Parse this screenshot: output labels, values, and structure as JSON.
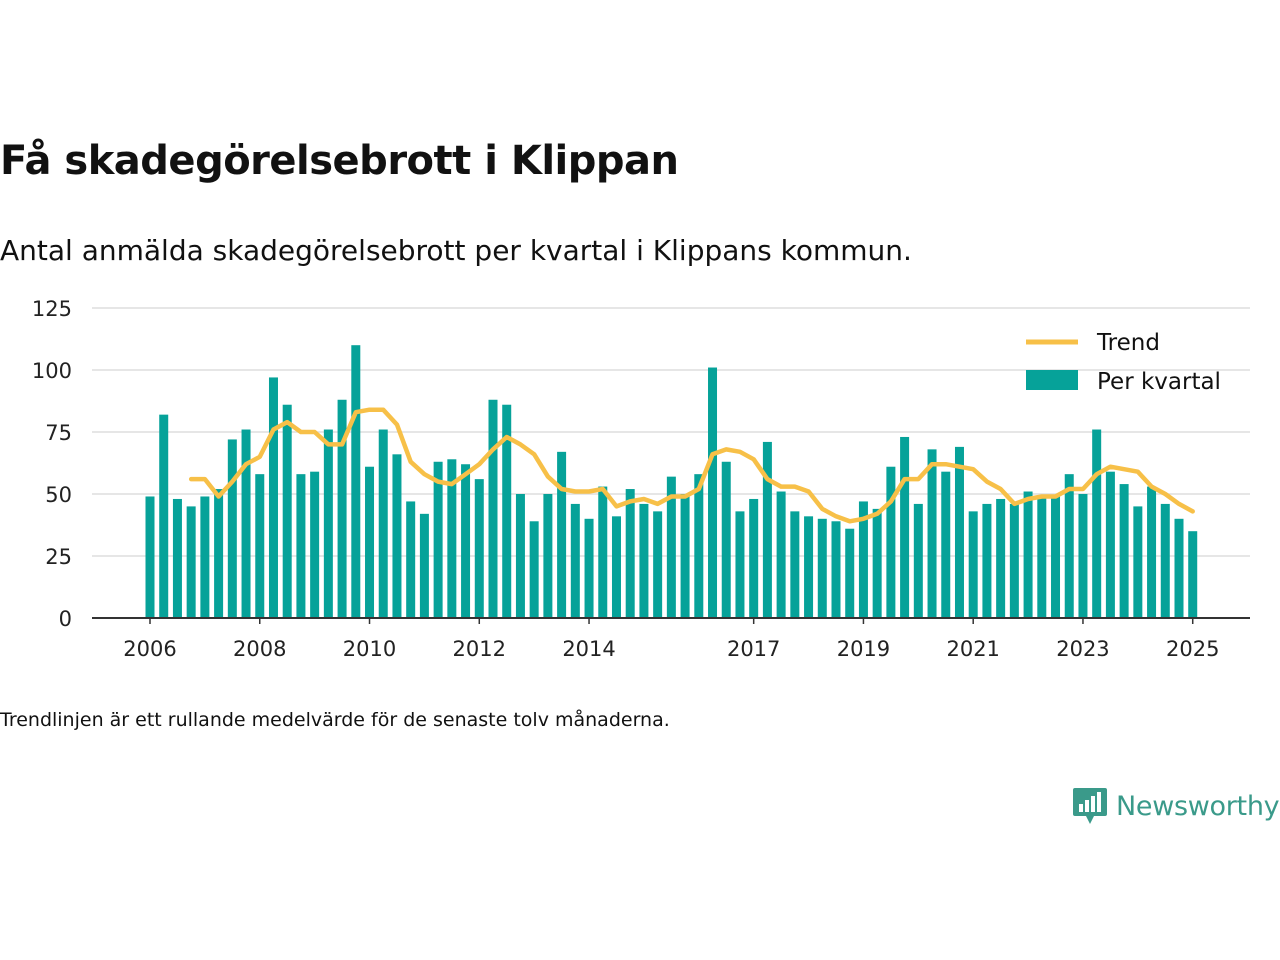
{
  "title": "Få skadegörelsebrott i Klippan",
  "subtitle": "Antal anmälda skadegörelsebrott per kvartal i Klippans kommun.",
  "footnote": "Trendlinjen är ett rullande medelvärde för de senaste tolv månaderna.",
  "brand": "Newsworthy",
  "colors": {
    "bars": "#06a299",
    "trend": "#f7c048",
    "grid": "#dddddd",
    "axis": "#333333"
  },
  "chart_data": {
    "type": "bar",
    "ylim": [
      0,
      125
    ],
    "yticks": [
      0,
      25,
      50,
      75,
      100,
      125
    ],
    "xtick_labels": [
      {
        "label": "2006",
        "index": 0
      },
      {
        "label": "2008",
        "index": 8
      },
      {
        "label": "2010",
        "index": 16
      },
      {
        "label": "2012",
        "index": 24
      },
      {
        "label": "2014",
        "index": 32
      },
      {
        "label": "2017",
        "index": 44
      },
      {
        "label": "2019",
        "index": 52
      },
      {
        "label": "2021",
        "index": 60
      },
      {
        "label": "2023",
        "index": 68
      },
      {
        "label": "2025",
        "index": 76
      }
    ],
    "grid": true,
    "legend_position": "top-right",
    "series": [
      {
        "name": "Per kvartal",
        "type": "bar",
        "values": [
          49,
          82,
          48,
          45,
          49,
          52,
          72,
          76,
          58,
          97,
          86,
          58,
          59,
          76,
          88,
          110,
          61,
          76,
          66,
          47,
          42,
          63,
          64,
          62,
          56,
          88,
          86,
          50,
          39,
          50,
          67,
          46,
          40,
          53,
          41,
          52,
          46,
          43,
          57,
          50,
          58,
          101,
          63,
          43,
          48,
          71,
          51,
          43,
          41,
          40,
          39,
          36,
          47,
          44,
          61,
          73,
          46,
          68,
          59,
          69,
          43,
          46,
          48,
          46,
          51,
          49,
          49,
          58,
          50,
          76,
          59,
          54,
          45,
          53,
          46,
          40,
          35
        ]
      },
      {
        "name": "Trend",
        "type": "line",
        "start_index": 3,
        "values": [
          56,
          56,
          49,
          55,
          62,
          65,
          76,
          79,
          75,
          75,
          70,
          70,
          83,
          84,
          84,
          78,
          63,
          58,
          55,
          54,
          58,
          62,
          68,
          73,
          70,
          66,
          57,
          52,
          51,
          51,
          52,
          45,
          47,
          48,
          46,
          49,
          49,
          52,
          66,
          68,
          67,
          64,
          56,
          53,
          53,
          51,
          44,
          41,
          39,
          40,
          42,
          47,
          56,
          56,
          62,
          62,
          61,
          60,
          55,
          52,
          46,
          48,
          49,
          49,
          52,
          52,
          58,
          61,
          60,
          59,
          53,
          50,
          46,
          43
        ]
      }
    ]
  }
}
